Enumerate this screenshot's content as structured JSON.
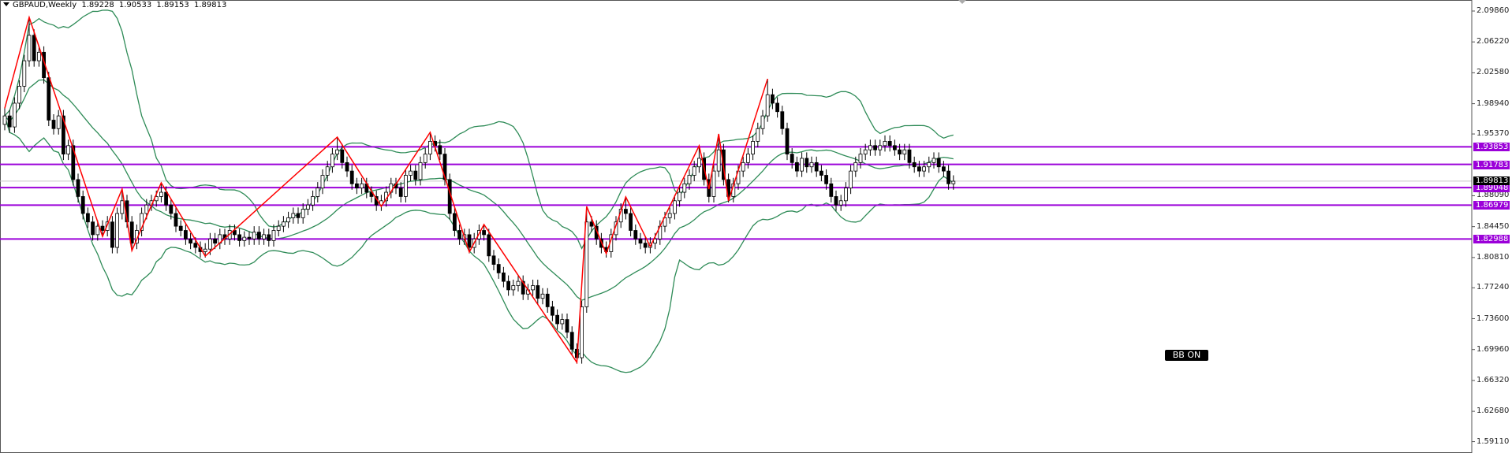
{
  "header": {
    "symbol": "GBPAUD,Weekly",
    "open": "1.89228",
    "high": "1.90533",
    "low": "1.89153",
    "close": "1.89813"
  },
  "indicator_button": "BB ON",
  "colors": {
    "level": "#9b00d9",
    "zigzag": "#ff0000",
    "bands": "#2e8b57",
    "bull": "#ffffff",
    "bear": "#000000",
    "current_price_bg": "#000000"
  },
  "chart_data": {
    "type": "candlestick",
    "title": "GBPAUD,Weekly",
    "ylim": [
      1.5777,
      2.1116
    ],
    "y_ticks": [
      "2.09860",
      "2.06220",
      "2.02580",
      "1.98940",
      "1.95370",
      "1.88090",
      "1.84450",
      "1.80810",
      "1.77240",
      "1.73600",
      "1.69960",
      "1.66320",
      "1.62680",
      "1.59110"
    ],
    "current_price": "1.89813",
    "levels": [
      "1.93853",
      "1.91783",
      "1.89048",
      "1.86979",
      "1.82988"
    ],
    "closes": [
      1.975,
      1.962,
      1.99,
      2.01,
      2.04,
      2.07,
      2.04,
      2.05,
      2.02,
      1.97,
      1.96,
      1.975,
      1.93,
      1.94,
      1.9,
      1.88,
      1.86,
      1.85,
      1.835,
      1.845,
      1.84,
      1.85,
      1.82,
      1.86,
      1.875,
      1.85,
      1.825,
      1.84,
      1.86,
      1.87,
      1.875,
      1.88,
      1.885,
      1.87,
      1.86,
      1.845,
      1.84,
      1.83,
      1.825,
      1.82,
      1.815,
      1.818,
      1.83,
      1.825,
      1.835,
      1.83,
      1.84,
      1.835,
      1.828,
      1.832,
      1.83,
      1.838,
      1.83,
      1.835,
      1.828,
      1.84,
      1.845,
      1.85,
      1.855,
      1.86,
      1.855,
      1.865,
      1.87,
      1.88,
      1.89,
      1.905,
      1.915,
      1.93,
      1.935,
      1.92,
      1.91,
      1.895,
      1.89,
      1.895,
      1.885,
      1.88,
      1.87,
      1.875,
      1.885,
      1.895,
      1.89,
      1.88,
      1.905,
      1.91,
      1.9,
      1.92,
      1.93,
      1.945,
      1.94,
      1.93,
      1.9,
      1.86,
      1.84,
      1.83,
      1.835,
      1.82,
      1.83,
      1.84,
      1.835,
      1.81,
      1.8,
      1.79,
      1.78,
      1.77,
      1.775,
      1.78,
      1.765,
      1.77,
      1.775,
      1.76,
      1.765,
      1.75,
      1.74,
      1.73,
      1.735,
      1.72,
      1.7,
      1.69,
      1.75,
      1.85,
      1.845,
      1.83,
      1.82,
      1.815,
      1.835,
      1.85,
      1.865,
      1.86,
      1.84,
      1.83,
      1.825,
      1.82,
      1.825,
      1.83,
      1.845,
      1.855,
      1.86,
      1.875,
      1.885,
      1.895,
      1.905,
      1.915,
      1.925,
      1.9,
      1.88,
      1.91,
      1.935,
      1.9,
      1.88,
      1.895,
      1.91,
      1.92,
      1.93,
      1.945,
      1.96,
      1.975,
      2.0,
      1.99,
      1.98,
      1.96,
      1.93,
      1.92,
      1.91,
      1.925,
      1.915,
      1.92,
      1.91,
      1.905,
      1.895,
      1.88,
      1.87,
      1.875,
      1.89,
      1.91,
      1.92,
      1.93,
      1.935,
      1.94,
      1.935,
      1.94,
      1.945,
      1.94,
      1.935,
      1.93,
      1.935,
      1.92,
      1.915,
      1.91,
      1.915,
      1.92,
      1.925,
      1.915,
      1.91,
      1.895,
      1.898
    ],
    "zigzag": [
      [
        0,
        1.984
      ],
      [
        5,
        2.0912
      ],
      [
        20,
        1.833
      ],
      [
        24,
        1.8888
      ],
      [
        26,
        1.8163
      ],
      [
        32,
        1.8962
      ],
      [
        41,
        1.8098
      ],
      [
        68,
        1.95
      ],
      [
        77,
        1.8683
      ],
      [
        87,
        1.9556
      ],
      [
        95,
        1.8145
      ],
      [
        98,
        1.847
      ],
      [
        117,
        1.6845
      ],
      [
        119,
        1.8683
      ],
      [
        123,
        1.8126
      ],
      [
        127,
        1.8795
      ],
      [
        132,
        1.821
      ],
      [
        142,
        1.9398
      ],
      [
        144,
        1.8888
      ],
      [
        146,
        1.9538
      ],
      [
        148,
        1.8748
      ],
      [
        156,
        2.0187
      ]
    ],
    "bands": "Bollinger Bands",
    "grid": false
  }
}
